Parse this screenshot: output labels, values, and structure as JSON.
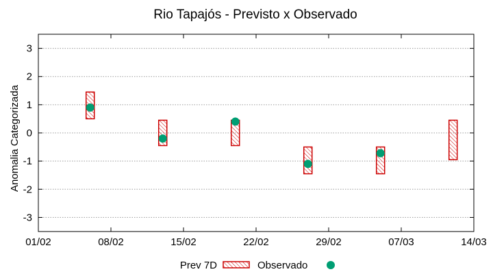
{
  "chart_data": {
    "type": "range_scatter",
    "title": "Rio Tapajós - Previsto x Observado",
    "xlabel": "",
    "ylabel": "Anomalia Categorizada",
    "x_ticks": [
      "01/02",
      "08/02",
      "15/02",
      "22/02",
      "29/02",
      "07/03",
      "14/03"
    ],
    "x_range_days": [
      0,
      42
    ],
    "ylim": [
      -3.5,
      3.5
    ],
    "y_ticks": [
      3,
      2,
      1,
      0,
      -1,
      -2,
      -3
    ],
    "grid": true,
    "legend": {
      "position": "bottom",
      "entries": [
        "Prev 7D",
        "Observado"
      ]
    },
    "series": [
      {
        "name": "Prev 7D",
        "kind": "range",
        "color": "#cc0000",
        "points": [
          {
            "x_day": 5.0,
            "date": "06/02",
            "low": 0.5,
            "high": 1.45
          },
          {
            "x_day": 12.0,
            "date": "13/02",
            "low": -0.45,
            "high": 0.45
          },
          {
            "x_day": 19.0,
            "date": "20/02",
            "low": -0.45,
            "high": 0.45
          },
          {
            "x_day": 26.0,
            "date": "27/02",
            "low": -1.45,
            "high": -0.5
          },
          {
            "x_day": 33.0,
            "date": "05/03",
            "low": -1.45,
            "high": -0.5
          },
          {
            "x_day": 40.0,
            "date": "12/03",
            "low": -0.95,
            "high": 0.45
          }
        ]
      },
      {
        "name": "Observado",
        "kind": "point",
        "color": "#009e73",
        "points": [
          {
            "x_day": 5.0,
            "date": "06/02",
            "y": 0.9
          },
          {
            "x_day": 12.0,
            "date": "13/02",
            "y": -0.2
          },
          {
            "x_day": 19.0,
            "date": "20/02",
            "y": 0.4
          },
          {
            "x_day": 26.0,
            "date": "27/02",
            "y": -1.1
          },
          {
            "x_day": 33.0,
            "date": "05/03",
            "y": -0.72
          }
        ]
      }
    ]
  }
}
